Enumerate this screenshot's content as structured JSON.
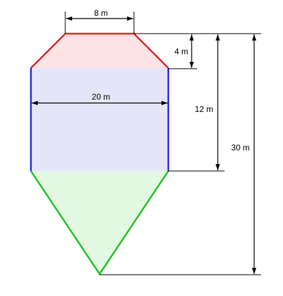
{
  "labels": {
    "top_width": "8 m",
    "middle_width": "20 m",
    "top_height": "4 m",
    "upper_height": "12 m",
    "total_height": "30 m"
  },
  "colors": {
    "frustum_fill": "#fde4e4",
    "frustum_stroke": "#e8222a",
    "cylinder_fill": "#e6e6fb",
    "cylinder_stroke": "#2b2bea",
    "cone_fill": "#e2f8e2",
    "cone_stroke": "#22c422",
    "dimension_line": "#000000"
  }
}
